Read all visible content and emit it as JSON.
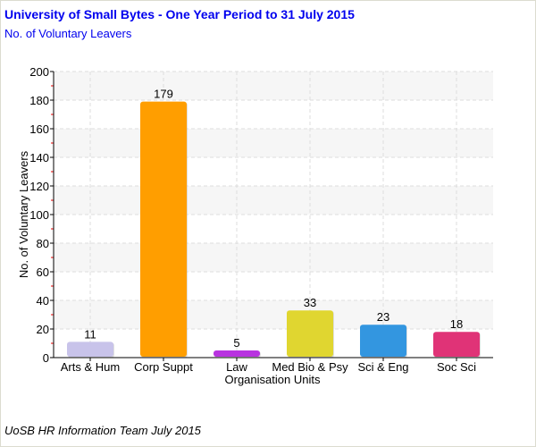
{
  "chart_data": {
    "type": "bar",
    "title": "University of Small Bytes - One Year Period to 31 July 2015",
    "subtitle": "No. of Voluntary Leavers",
    "xlabel": "Organisation Units",
    "ylabel": "No. of Voluntary Leavers",
    "ylim": [
      0,
      200
    ],
    "yticks": [
      0,
      20,
      40,
      60,
      80,
      100,
      120,
      140,
      160,
      180,
      200
    ],
    "categories": [
      "Arts & Hum",
      "Corp Suppt",
      "Law",
      "Med Bio & Psy",
      "Sci & Eng",
      "Soc Sci"
    ],
    "values": [
      11,
      179,
      5,
      33,
      23,
      18
    ],
    "colors": [
      "#c8c3ea",
      "#ff9e00",
      "#b833e0",
      "#e0d630",
      "#3396e0",
      "#e03377"
    ],
    "grid": true,
    "footer": "UoSB HR Information Team July 2015"
  }
}
